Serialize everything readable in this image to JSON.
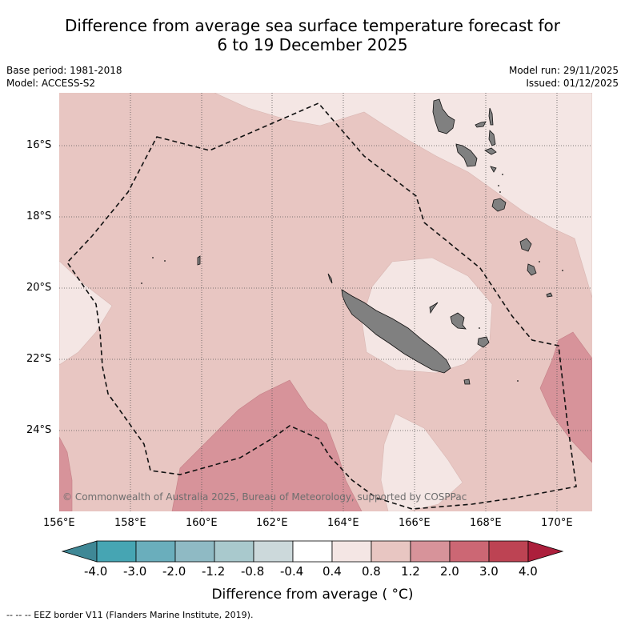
{
  "header": {
    "title_line1": "Difference from average sea surface temperature forecast for",
    "title_line2": "6 to 19 December 2025",
    "base_period": "Base period: 1981-2018",
    "model": "Model: ACCESS-S2",
    "model_run": "Model run: 29/11/2025",
    "issued": "Issued: 01/12/2025"
  },
  "map": {
    "lat_labels": [
      "16°S",
      "18°S",
      "20°S",
      "22°S",
      "24°S"
    ],
    "lon_labels": [
      "156°E",
      "158°E",
      "160°E",
      "162°E",
      "164°E",
      "166°E",
      "168°E",
      "170°E"
    ],
    "credit": "© Commonwealth of Australia 2025, Bureau of Meteorology, supported by COSPPac",
    "colors": {
      "anom_0_4_to_0_8": "#f4e6e4",
      "anom_0_8_to_1_2": "#e8c6c2",
      "anom_1_2_to_2_0": "#d7939a",
      "land": "#808080",
      "gridline": "#555555"
    }
  },
  "colorbar": {
    "ticks": [
      "-4.0",
      "-3.0",
      "-2.0",
      "-1.2",
      "-0.8",
      "-0.4",
      "0.4",
      "0.8",
      "1.2",
      "2.0",
      "3.0",
      "4.0"
    ],
    "colors": [
      "#3f8896",
      "#46a5b3",
      "#6aaebc",
      "#8fbac4",
      "#a9c9cd",
      "#ccd9db",
      "#ffffff",
      "#f4e6e4",
      "#e8c6c2",
      "#d7939a",
      "#cc6774",
      "#bd4353",
      "#ac1f3c"
    ],
    "title": "Difference from average ( °C)"
  },
  "footnote": "--  --  -- EEZ border V11 (Flanders Marine Institute, 2019)."
}
